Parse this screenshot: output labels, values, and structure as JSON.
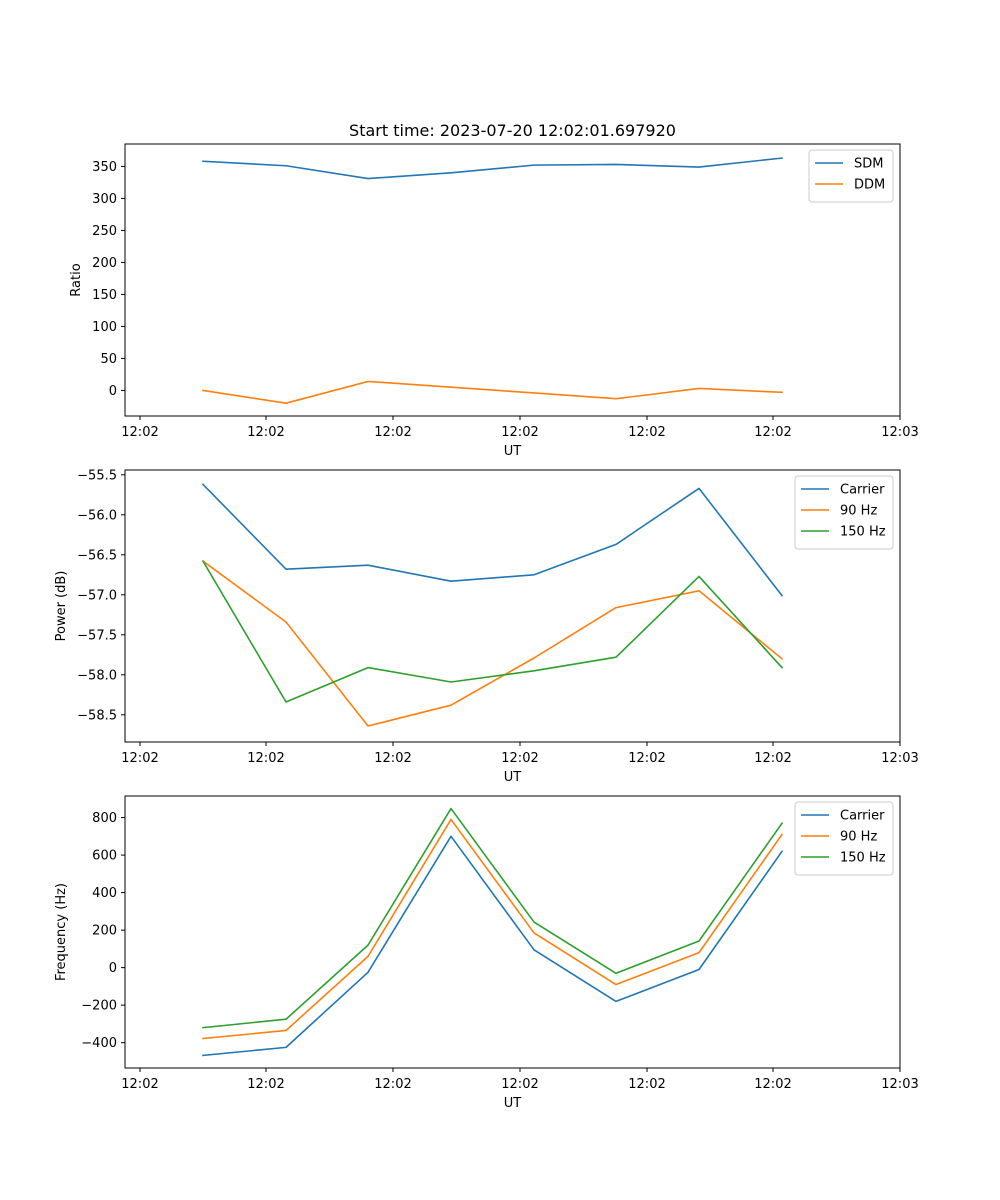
{
  "chart_data": [
    {
      "type": "line",
      "title": "Start time: 2023-07-20 12:02:01.697920",
      "xlabel": "UT",
      "ylabel": "Ratio",
      "x_tick_labels": [
        "12:02",
        "12:02",
        "12:02",
        "12:02",
        "12:02",
        "12:02",
        "12:03"
      ],
      "ylim": [
        -40,
        385
      ],
      "y_ticks": [
        0,
        50,
        100,
        150,
        200,
        250,
        300,
        350
      ],
      "y_tick_labels": [
        "0",
        "50",
        "100",
        "150",
        "200",
        "250",
        "300",
        "350"
      ],
      "legend_position": "top-right",
      "series": [
        {
          "name": "SDM",
          "color": "#1f77b4",
          "values": [
            358,
            351,
            331,
            340,
            352,
            353,
            349,
            363
          ]
        },
        {
          "name": "DDM",
          "color": "#ff7f0e",
          "values": [
            0,
            -20,
            14,
            5,
            -4,
            -13,
            3,
            -3
          ]
        }
      ]
    },
    {
      "type": "line",
      "title": "",
      "xlabel": "UT",
      "ylabel": "Power (dB)",
      "x_tick_labels": [
        "12:02",
        "12:02",
        "12:02",
        "12:02",
        "12:02",
        "12:02",
        "12:03"
      ],
      "ylim": [
        -58.84,
        -55.44
      ],
      "y_ticks": [
        -58.5,
        -58.0,
        -57.5,
        -57.0,
        -56.5,
        -56.0,
        -55.5
      ],
      "y_tick_labels": [
        "−58.5",
        "−58.0",
        "−57.5",
        "−57.0",
        "−56.5",
        "−56.0",
        "−55.5"
      ],
      "legend_position": "top-right",
      "series": [
        {
          "name": "Carrier",
          "color": "#1f77b4",
          "values": [
            -55.62,
            -56.68,
            -56.63,
            -56.83,
            -56.75,
            -56.37,
            -55.67,
            -57.01
          ]
        },
        {
          "name": "90 Hz",
          "color": "#ff7f0e",
          "values": [
            -56.58,
            -57.34,
            -58.64,
            -58.38,
            -57.79,
            -57.16,
            -56.95,
            -57.8
          ]
        },
        {
          "name": "150 Hz",
          "color": "#2ca02c",
          "values": [
            -56.58,
            -58.34,
            -57.91,
            -58.09,
            -57.95,
            -57.78,
            -56.77,
            -57.91
          ]
        }
      ]
    },
    {
      "type": "line",
      "title": "",
      "xlabel": "UT",
      "ylabel": "Frequency (Hz)",
      "x_tick_labels": [
        "12:02",
        "12:02",
        "12:02",
        "12:02",
        "12:02",
        "12:02",
        "12:03"
      ],
      "ylim": [
        -535,
        915
      ],
      "y_ticks": [
        -400,
        -200,
        0,
        200,
        400,
        600,
        800
      ],
      "y_tick_labels": [
        "−400",
        "−200",
        "0",
        "200",
        "400",
        "600",
        "800"
      ],
      "legend_position": "top-right",
      "series": [
        {
          "name": "Carrier",
          "color": "#1f77b4",
          "values": [
            -468,
            -425,
            -25,
            700,
            95,
            -180,
            -10,
            620
          ]
        },
        {
          "name": "90 Hz",
          "color": "#ff7f0e",
          "values": [
            -378,
            -335,
            60,
            790,
            185,
            -90,
            80,
            710
          ]
        },
        {
          "name": "150 Hz",
          "color": "#2ca02c",
          "values": [
            -320,
            -275,
            120,
            848,
            243,
            -30,
            142,
            770
          ]
        }
      ]
    }
  ]
}
